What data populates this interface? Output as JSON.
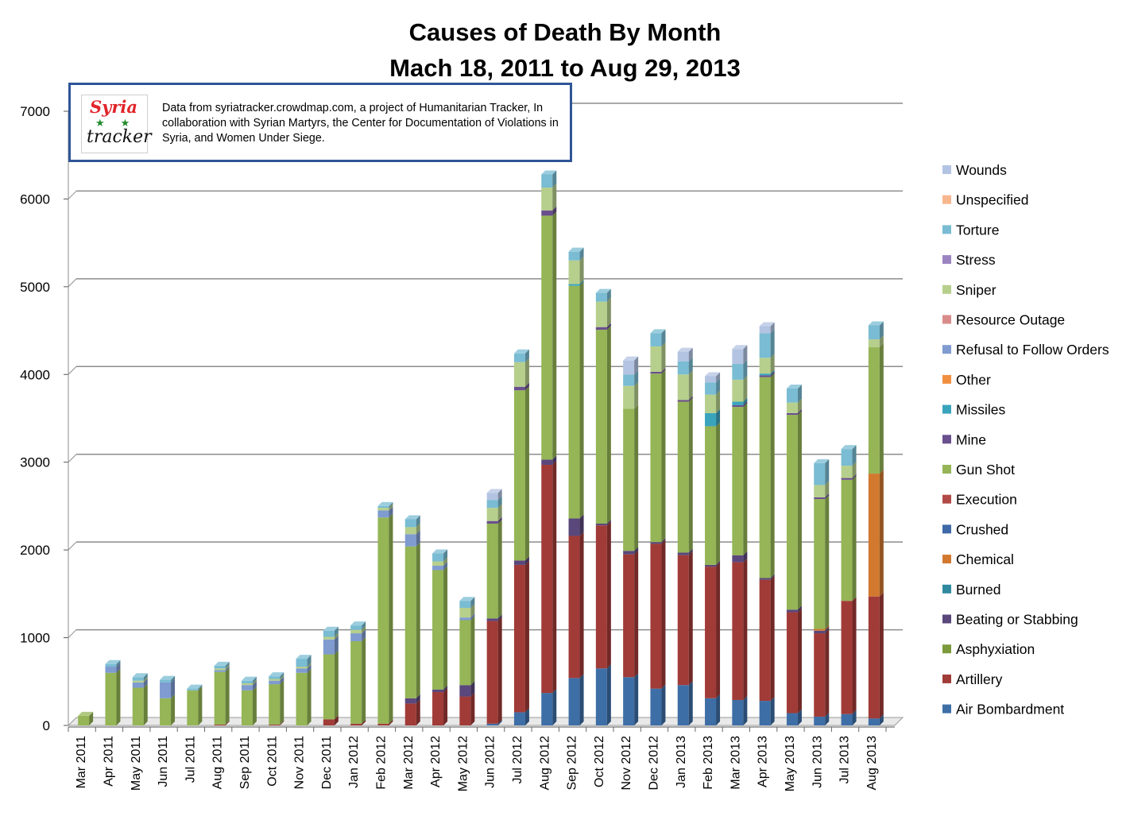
{
  "chart_data": {
    "type": "bar",
    "stacked": true,
    "title": "Causes of Death By Month",
    "subtitle": "Mach 18, 2011 to Aug 29, 2013",
    "xlabel": "",
    "ylabel": "",
    "ylim": [
      0,
      7000
    ],
    "yticks": [
      0,
      1000,
      2000,
      3000,
      4000,
      5000,
      6000,
      7000
    ],
    "grid": true,
    "legend_position": "right",
    "categories": [
      "Mar 2011",
      "Apr 2011",
      "May 2011",
      "Jun 2011",
      "Jul 2011",
      "Aug 2011",
      "Sep 2011",
      "Oct 2011",
      "Nov 2011",
      "Dec 2011",
      "Jan 2012",
      "Feb 2012",
      "Mar 2012",
      "Apr 2012",
      "May 2012",
      "Jun 2012",
      "Jul 2012",
      "Aug 2012",
      "Sep 2012",
      "Oct 2012",
      "Nov 2012",
      "Dec 2012",
      "Jan 2013",
      "Feb 2013",
      "Mar 2013",
      "Apr 2013",
      "May 2013",
      "Jun 2013",
      "Jul 2013",
      "Aug 2013"
    ],
    "series": [
      {
        "name": "Air Bombardment",
        "color": "#3e6ea6",
        "values": [
          0,
          0,
          0,
          0,
          0,
          0,
          0,
          0,
          0,
          0,
          0,
          0,
          0,
          0,
          0,
          20,
          150,
          370,
          540,
          650,
          550,
          420,
          460,
          310,
          290,
          280,
          140,
          100,
          130,
          80
        ]
      },
      {
        "name": "Artillery",
        "color": "#a13b37",
        "values": [
          0,
          0,
          0,
          0,
          0,
          10,
          0,
          10,
          0,
          70,
          20,
          20,
          250,
          380,
          330,
          1170,
          1680,
          2600,
          1620,
          1630,
          1400,
          1650,
          1480,
          1500,
          1570,
          1380,
          1150,
          950,
          1290,
          1390
        ]
      },
      {
        "name": "Asphyxiation",
        "color": "#7c9a3b",
        "values": [
          0,
          0,
          0,
          0,
          0,
          0,
          0,
          0,
          0,
          0,
          0,
          0,
          0,
          0,
          0,
          0,
          0,
          0,
          0,
          0,
          0,
          0,
          0,
          0,
          0,
          0,
          0,
          0,
          0,
          0
        ]
      },
      {
        "name": "Beating or Stabbing",
        "color": "#5a477b",
        "values": [
          0,
          0,
          0,
          0,
          0,
          0,
          0,
          0,
          0,
          0,
          0,
          0,
          60,
          30,
          130,
          30,
          50,
          60,
          200,
          20,
          40,
          20,
          30,
          20,
          80,
          20,
          30,
          30,
          0,
          0
        ]
      },
      {
        "name": "Burned",
        "color": "#2f8aa0",
        "values": [
          0,
          0,
          0,
          0,
          0,
          0,
          0,
          0,
          0,
          0,
          0,
          0,
          0,
          0,
          0,
          0,
          0,
          0,
          0,
          0,
          0,
          0,
          0,
          0,
          0,
          0,
          0,
          0,
          0,
          0
        ]
      },
      {
        "name": "Chemical",
        "color": "#d2792f",
        "values": [
          0,
          0,
          0,
          0,
          0,
          0,
          0,
          0,
          0,
          0,
          0,
          0,
          0,
          0,
          0,
          0,
          0,
          0,
          0,
          0,
          0,
          0,
          0,
          0,
          0,
          0,
          0,
          20,
          0,
          1400
        ]
      },
      {
        "name": "Crushed",
        "color": "#3d69a8",
        "values": [
          0,
          0,
          0,
          0,
          0,
          0,
          0,
          0,
          0,
          0,
          0,
          0,
          0,
          0,
          0,
          0,
          0,
          0,
          0,
          0,
          0,
          0,
          0,
          0,
          0,
          0,
          0,
          0,
          0,
          0
        ]
      },
      {
        "name": "Execution",
        "color": "#b14a47",
        "values": [
          0,
          0,
          0,
          0,
          0,
          0,
          0,
          0,
          0,
          0,
          0,
          0,
          0,
          0,
          0,
          0,
          0,
          0,
          0,
          0,
          0,
          0,
          0,
          0,
          0,
          0,
          0,
          0,
          0,
          0
        ]
      },
      {
        "name": "Gun Shot",
        "color": "#95b556",
        "values": [
          110,
          600,
          430,
          310,
          400,
          600,
          400,
          460,
          600,
          740,
          940,
          2350,
          1730,
          1360,
          740,
          1080,
          1940,
          2780,
          2650,
          2210,
          1620,
          1920,
          1720,
          1580,
          1690,
          2290,
          2220,
          1480,
          1380,
          1440
        ]
      },
      {
        "name": "Mine",
        "color": "#6a4f8e",
        "values": [
          0,
          0,
          0,
          0,
          0,
          0,
          0,
          0,
          0,
          0,
          0,
          0,
          0,
          0,
          0,
          30,
          40,
          60,
          0,
          30,
          0,
          20,
          20,
          0,
          20,
          20,
          20,
          20,
          20,
          0
        ]
      },
      {
        "name": "Missiles",
        "color": "#3aa4bd",
        "values": [
          0,
          0,
          0,
          0,
          0,
          0,
          0,
          0,
          0,
          0,
          0,
          0,
          0,
          0,
          0,
          0,
          0,
          0,
          20,
          0,
          0,
          0,
          0,
          150,
          40,
          20,
          0,
          0,
          0,
          0
        ]
      },
      {
        "name": "Other",
        "color": "#f28f3f",
        "values": [
          0,
          0,
          0,
          0,
          0,
          0,
          0,
          0,
          0,
          0,
          0,
          0,
          0,
          0,
          0,
          0,
          0,
          0,
          0,
          0,
          0,
          0,
          0,
          0,
          0,
          0,
          0,
          0,
          0,
          0
        ]
      },
      {
        "name": "Refusal to Follow Orders",
        "color": "#7f9bd0",
        "values": [
          0,
          70,
          60,
          180,
          0,
          20,
          60,
          40,
          50,
          170,
          90,
          80,
          140,
          50,
          30,
          0,
          0,
          0,
          0,
          0,
          0,
          0,
          0,
          0,
          0,
          0,
          0,
          0,
          0,
          0
        ]
      },
      {
        "name": "Resource Outage",
        "color": "#d98b8a",
        "values": [
          0,
          0,
          0,
          0,
          0,
          0,
          0,
          0,
          0,
          0,
          0,
          0,
          0,
          0,
          0,
          0,
          0,
          0,
          0,
          0,
          0,
          0,
          0,
          0,
          0,
          0,
          0,
          0,
          0,
          0
        ]
      },
      {
        "name": "Sniper",
        "color": "#b6cf8c",
        "values": [
          0,
          0,
          20,
          0,
          0,
          20,
          20,
          20,
          20,
          30,
          40,
          30,
          80,
          50,
          110,
          150,
          280,
          260,
          270,
          290,
          260,
          290,
          290,
          210,
          250,
          180,
          120,
          140,
          140,
          90
        ]
      },
      {
        "name": "Stress",
        "color": "#9c84c0",
        "values": [
          0,
          0,
          0,
          0,
          0,
          0,
          0,
          0,
          0,
          0,
          0,
          0,
          0,
          0,
          0,
          0,
          0,
          0,
          0,
          0,
          0,
          0,
          0,
          0,
          0,
          0,
          0,
          0,
          0,
          0
        ]
      },
      {
        "name": "Torture",
        "color": "#79bcd3",
        "values": [
          0,
          30,
          40,
          30,
          20,
          30,
          30,
          30,
          90,
          70,
          50,
          20,
          90,
          90,
          80,
          90,
          100,
          150,
          100,
          100,
          130,
          150,
          150,
          140,
          180,
          280,
          160,
          250,
          190,
          160
        ]
      },
      {
        "name": "Unspecified",
        "color": "#f7b68e",
        "values": [
          0,
          0,
          0,
          0,
          0,
          0,
          0,
          0,
          0,
          0,
          0,
          0,
          0,
          0,
          0,
          0,
          0,
          0,
          0,
          0,
          0,
          0,
          0,
          0,
          0,
          0,
          0,
          0,
          0,
          0
        ]
      },
      {
        "name": "Wounds",
        "color": "#b3c3e2",
        "values": [
          0,
          0,
          0,
          0,
          0,
          0,
          0,
          0,
          0,
          0,
          0,
          0,
          0,
          0,
          0,
          80,
          0,
          0,
          0,
          0,
          160,
          0,
          110,
          70,
          170,
          80,
          0,
          0,
          0,
          0
        ]
      }
    ]
  },
  "legend_order": [
    "Wounds",
    "Unspecified",
    "Torture",
    "Stress",
    "Sniper",
    "Resource Outage",
    "Refusal to Follow Orders",
    "Other",
    "Missiles",
    "Mine",
    "Gun Shot",
    "Execution",
    "Crushed",
    "Chemical",
    "Burned",
    "Beating or Stabbing",
    "Asphyxiation",
    "Artillery",
    "Air Bombardment"
  ],
  "note": {
    "logo_top": "Syria",
    "logo_stars": "★★",
    "logo_bottom": "tracker",
    "text": "Data from syriatracker.crowdmap.com, a project of Humanitarian Tracker, In collaboration with Syrian Martyrs, the Center for Documentation of Violations in Syria, and Women Under Siege."
  }
}
